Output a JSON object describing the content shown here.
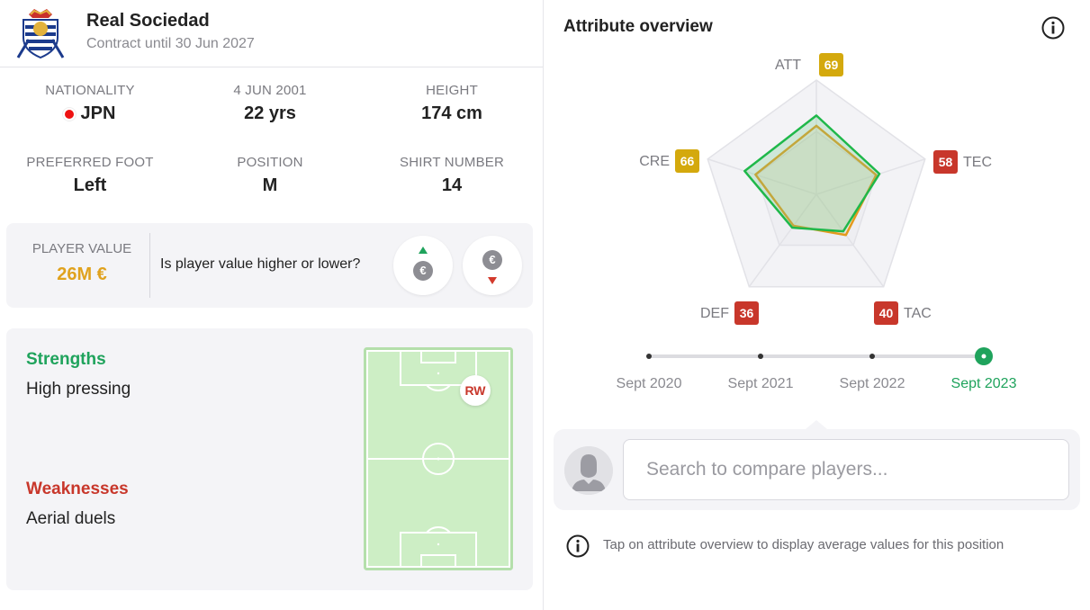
{
  "club": {
    "name": "Real Sociedad",
    "contract": "Contract until 30 Jun 2027",
    "crest_icon": "real-sociedad-crest-icon"
  },
  "info": {
    "nationality": {
      "label": "NATIONALITY",
      "value": "JPN",
      "flag_color": "#e11111"
    },
    "birthdate": {
      "label": "4 JUN 2001",
      "value": "22 yrs"
    },
    "height": {
      "label": "HEIGHT",
      "value": "174 cm"
    },
    "foot": {
      "label": "PREFERRED FOOT",
      "value": "Left"
    },
    "position": {
      "label": "POSITION",
      "value": "M"
    },
    "shirt": {
      "label": "SHIRT NUMBER",
      "value": "14"
    }
  },
  "player_value": {
    "label": "PLAYER VALUE",
    "amount": "26M €",
    "question": "Is player value higher or lower?",
    "higher_icon": "euro-up-icon",
    "lower_icon": "euro-down-icon",
    "euro_symbol": "€"
  },
  "strengths": {
    "title": "Strengths",
    "items": [
      "High pressing"
    ],
    "color": "#1fa35c"
  },
  "weaknesses": {
    "title": "Weaknesses",
    "items": [
      "Aerial duels"
    ],
    "color": "#c8372b"
  },
  "pitch": {
    "position_label": "RW"
  },
  "attributes": {
    "title": "Attribute overview",
    "axes": [
      {
        "key": "ATT",
        "value": 69,
        "badge_color": "#d4a90d"
      },
      {
        "key": "TEC",
        "value": 58,
        "badge_color": "#c8372b"
      },
      {
        "key": "TAC",
        "value": 40,
        "badge_color": "#c8372b"
      },
      {
        "key": "DEF",
        "value": 36,
        "badge_color": "#c8372b"
      },
      {
        "key": "CRE",
        "value": 66,
        "badge_color": "#d4a90d"
      }
    ],
    "series": [
      {
        "values": [
          69,
          58,
          40,
          36,
          66
        ],
        "color": "#1fb84a"
      },
      {
        "values": [
          60,
          55,
          44,
          34,
          56
        ],
        "color": "#e39a1e"
      }
    ],
    "max": 100
  },
  "timeline": {
    "points": [
      "Sept 2020",
      "Sept 2021",
      "Sept 2022",
      "Sept 2023"
    ],
    "active_index": 3
  },
  "compare": {
    "placeholder": "Search to compare players...",
    "avatar_icon": "player-silhouette-icon"
  },
  "hint": {
    "text": "Tap on attribute overview to display average values for this position",
    "icon": "info-icon"
  }
}
